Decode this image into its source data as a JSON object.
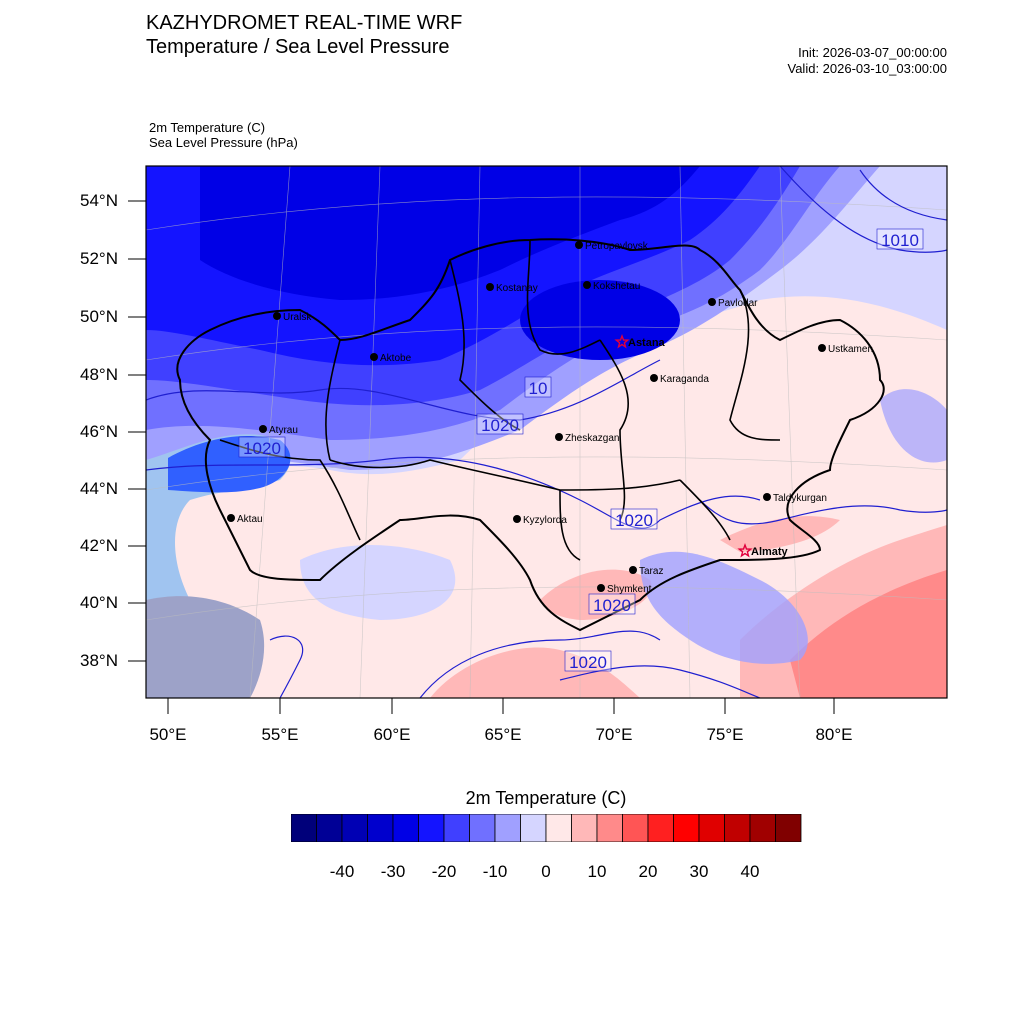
{
  "header": {
    "title": "KAZHYDROMET REAL-TIME WRF",
    "subtitle": "Temperature / Sea Level Pressure",
    "init": "Init: 2026-03-07_00:00:00",
    "valid": "Valid: 2026-03-10_03:00:00"
  },
  "fields": {
    "temperature": "2m Temperature   (C)",
    "pressure": "Sea Level Pressure   (hPa)"
  },
  "axes": {
    "lat_labels": [
      "54°N",
      "52°N",
      "50°N",
      "48°N",
      "46°N",
      "44°N",
      "42°N",
      "40°N",
      "38°N"
    ],
    "lon_labels": [
      "50°E",
      "55°E",
      "60°E",
      "65°E",
      "70°E",
      "75°E",
      "80°E"
    ]
  },
  "cities": [
    {
      "name": "Petropavlovsk"
    },
    {
      "name": "Kostanay"
    },
    {
      "name": "Kokshetau"
    },
    {
      "name": "Uralsk"
    },
    {
      "name": "Aktobe"
    },
    {
      "name": "Pavlodar"
    },
    {
      "name": "Astana",
      "capital": true
    },
    {
      "name": "Ustkamen"
    },
    {
      "name": "Karaganda"
    },
    {
      "name": "Atyrau"
    },
    {
      "name": "Zheskazgan"
    },
    {
      "name": "Taldykurgan"
    },
    {
      "name": "Aktau"
    },
    {
      "name": "Kyzylorda"
    },
    {
      "name": "Almaty",
      "capital": true
    },
    {
      "name": "Taraz"
    },
    {
      "name": "Shymkent"
    }
  ],
  "isobar_labels": [
    "1010",
    "1020",
    "1020",
    "1020",
    "1020",
    "10",
    "1020"
  ],
  "colorbar": {
    "title": "2m Temperature  (C)",
    "labels": [
      "-40",
      "-30",
      "-20",
      "-10",
      "0",
      "10",
      "20",
      "30",
      "40"
    ],
    "colors": [
      "#00007a",
      "#000096",
      "#0000b4",
      "#0000cd",
      "#0000e6",
      "#1414ff",
      "#4040ff",
      "#7070ff",
      "#a0a0ff",
      "#d5d5ff",
      "#ffe8e8",
      "#ffb8b8",
      "#ff8a8a",
      "#ff5555",
      "#ff2020",
      "#ff0000",
      "#e00000",
      "#c00000",
      "#a00000",
      "#800000"
    ]
  }
}
